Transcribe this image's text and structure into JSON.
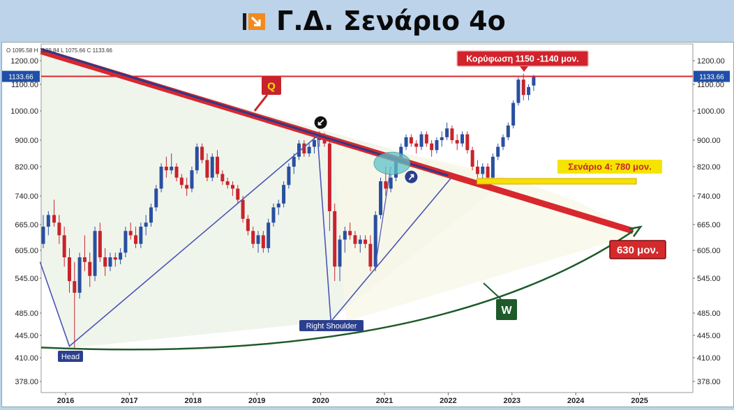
{
  "header": {
    "title": "Γ.Δ. Σενάριο 4ο"
  },
  "ohlc_legend": "O 1095.58  H 1139.84  L 1075.66  C 1133.66",
  "chart_data": {
    "type": "candlestick",
    "y_ticks": [
      378,
      410,
      445,
      485,
      545,
      605,
      665,
      740,
      820,
      900,
      1000,
      1100,
      1200
    ],
    "y_tick_labels": [
      "378.00",
      "410.00",
      "445.00",
      "485.00",
      "545.00",
      "605.00",
      "665.00",
      "740.00",
      "820.00",
      "900.00",
      "1000.00",
      "1100.00",
      "1200.00"
    ],
    "x_ticks": [
      2016,
      2017,
      2018,
      2019,
      2020,
      2021,
      2022,
      2023,
      2024,
      2025
    ],
    "x_tick_labels": [
      "2016",
      "2017",
      "2018",
      "2019",
      "2020",
      "2021",
      "2022",
      "2023",
      "2024",
      "2025"
    ],
    "current_price": 1133.66,
    "current_price_label": "1133.66",
    "scenario_level": 780,
    "candles": [
      {
        "t": 2015.65,
        "o": 620,
        "h": 690,
        "l": 610,
        "c": 660
      },
      {
        "t": 2015.73,
        "o": 660,
        "h": 700,
        "l": 640,
        "c": 690
      },
      {
        "t": 2015.82,
        "o": 690,
        "h": 730,
        "l": 660,
        "c": 670
      },
      {
        "t": 2015.9,
        "o": 670,
        "h": 690,
        "l": 620,
        "c": 640
      },
      {
        "t": 2015.98,
        "o": 640,
        "h": 660,
        "l": 570,
        "c": 590
      },
      {
        "t": 2016.06,
        "o": 590,
        "h": 610,
        "l": 520,
        "c": 540
      },
      {
        "t": 2016.14,
        "o": 540,
        "h": 580,
        "l": 425,
        "c": 520
      },
      {
        "t": 2016.22,
        "o": 520,
        "h": 600,
        "l": 510,
        "c": 590
      },
      {
        "t": 2016.3,
        "o": 590,
        "h": 640,
        "l": 560,
        "c": 580
      },
      {
        "t": 2016.38,
        "o": 580,
        "h": 600,
        "l": 530,
        "c": 550
      },
      {
        "t": 2016.46,
        "o": 550,
        "h": 660,
        "l": 540,
        "c": 650
      },
      {
        "t": 2016.54,
        "o": 650,
        "h": 670,
        "l": 580,
        "c": 590
      },
      {
        "t": 2016.62,
        "o": 590,
        "h": 610,
        "l": 550,
        "c": 570
      },
      {
        "t": 2016.7,
        "o": 570,
        "h": 600,
        "l": 560,
        "c": 590
      },
      {
        "t": 2016.78,
        "o": 590,
        "h": 600,
        "l": 570,
        "c": 585
      },
      {
        "t": 2016.86,
        "o": 585,
        "h": 610,
        "l": 575,
        "c": 600
      },
      {
        "t": 2016.94,
        "o": 600,
        "h": 660,
        "l": 590,
        "c": 650
      },
      {
        "t": 2017.02,
        "o": 650,
        "h": 670,
        "l": 630,
        "c": 640
      },
      {
        "t": 2017.1,
        "o": 640,
        "h": 660,
        "l": 610,
        "c": 620
      },
      {
        "t": 2017.18,
        "o": 620,
        "h": 670,
        "l": 610,
        "c": 660
      },
      {
        "t": 2017.26,
        "o": 660,
        "h": 690,
        "l": 640,
        "c": 670
      },
      {
        "t": 2017.34,
        "o": 670,
        "h": 720,
        "l": 660,
        "c": 710
      },
      {
        "t": 2017.42,
        "o": 710,
        "h": 770,
        "l": 700,
        "c": 760
      },
      {
        "t": 2017.5,
        "o": 760,
        "h": 830,
        "l": 750,
        "c": 820
      },
      {
        "t": 2017.58,
        "o": 820,
        "h": 850,
        "l": 790,
        "c": 810
      },
      {
        "t": 2017.66,
        "o": 810,
        "h": 860,
        "l": 800,
        "c": 820
      },
      {
        "t": 2017.74,
        "o": 820,
        "h": 830,
        "l": 780,
        "c": 790
      },
      {
        "t": 2017.82,
        "o": 790,
        "h": 800,
        "l": 760,
        "c": 770
      },
      {
        "t": 2017.9,
        "o": 770,
        "h": 790,
        "l": 740,
        "c": 760
      },
      {
        "t": 2017.98,
        "o": 760,
        "h": 820,
        "l": 750,
        "c": 810
      },
      {
        "t": 2018.06,
        "o": 810,
        "h": 890,
        "l": 800,
        "c": 880
      },
      {
        "t": 2018.14,
        "o": 880,
        "h": 890,
        "l": 830,
        "c": 840
      },
      {
        "t": 2018.22,
        "o": 840,
        "h": 860,
        "l": 780,
        "c": 790
      },
      {
        "t": 2018.3,
        "o": 790,
        "h": 860,
        "l": 780,
        "c": 850
      },
      {
        "t": 2018.38,
        "o": 850,
        "h": 870,
        "l": 790,
        "c": 800
      },
      {
        "t": 2018.46,
        "o": 800,
        "h": 810,
        "l": 770,
        "c": 780
      },
      {
        "t": 2018.54,
        "o": 780,
        "h": 790,
        "l": 760,
        "c": 770
      },
      {
        "t": 2018.62,
        "o": 770,
        "h": 780,
        "l": 740,
        "c": 760
      },
      {
        "t": 2018.7,
        "o": 760,
        "h": 770,
        "l": 720,
        "c": 730
      },
      {
        "t": 2018.78,
        "o": 730,
        "h": 740,
        "l": 670,
        "c": 680
      },
      {
        "t": 2018.86,
        "o": 680,
        "h": 690,
        "l": 640,
        "c": 650
      },
      {
        "t": 2018.94,
        "o": 650,
        "h": 660,
        "l": 610,
        "c": 620
      },
      {
        "t": 2019.02,
        "o": 620,
        "h": 650,
        "l": 600,
        "c": 640
      },
      {
        "t": 2019.1,
        "o": 640,
        "h": 650,
        "l": 600,
        "c": 610
      },
      {
        "t": 2019.18,
        "o": 610,
        "h": 680,
        "l": 600,
        "c": 670
      },
      {
        "t": 2019.26,
        "o": 670,
        "h": 720,
        "l": 660,
        "c": 710
      },
      {
        "t": 2019.34,
        "o": 710,
        "h": 730,
        "l": 690,
        "c": 720
      },
      {
        "t": 2019.42,
        "o": 720,
        "h": 780,
        "l": 710,
        "c": 770
      },
      {
        "t": 2019.5,
        "o": 770,
        "h": 830,
        "l": 760,
        "c": 820
      },
      {
        "t": 2019.58,
        "o": 820,
        "h": 860,
        "l": 800,
        "c": 850
      },
      {
        "t": 2019.66,
        "o": 850,
        "h": 900,
        "l": 840,
        "c": 890
      },
      {
        "t": 2019.74,
        "o": 890,
        "h": 900,
        "l": 850,
        "c": 860
      },
      {
        "t": 2019.82,
        "o": 860,
        "h": 890,
        "l": 850,
        "c": 880
      },
      {
        "t": 2019.9,
        "o": 880,
        "h": 910,
        "l": 860,
        "c": 900
      },
      {
        "t": 2019.98,
        "o": 900,
        "h": 930,
        "l": 880,
        "c": 910
      },
      {
        "t": 2020.06,
        "o": 910,
        "h": 925,
        "l": 880,
        "c": 890
      },
      {
        "t": 2020.14,
        "o": 890,
        "h": 900,
        "l": 650,
        "c": 700
      },
      {
        "t": 2020.22,
        "o": 700,
        "h": 720,
        "l": 540,
        "c": 570
      },
      {
        "t": 2020.3,
        "o": 570,
        "h": 640,
        "l": 540,
        "c": 630
      },
      {
        "t": 2020.38,
        "o": 630,
        "h": 660,
        "l": 600,
        "c": 650
      },
      {
        "t": 2020.46,
        "o": 650,
        "h": 670,
        "l": 630,
        "c": 640
      },
      {
        "t": 2020.54,
        "o": 640,
        "h": 650,
        "l": 610,
        "c": 620
      },
      {
        "t": 2020.62,
        "o": 620,
        "h": 640,
        "l": 600,
        "c": 630
      },
      {
        "t": 2020.7,
        "o": 630,
        "h": 640,
        "l": 610,
        "c": 620
      },
      {
        "t": 2020.78,
        "o": 620,
        "h": 640,
        "l": 560,
        "c": 570
      },
      {
        "t": 2020.86,
        "o": 570,
        "h": 700,
        "l": 560,
        "c": 690
      },
      {
        "t": 2020.94,
        "o": 690,
        "h": 790,
        "l": 680,
        "c": 780
      },
      {
        "t": 2021.02,
        "o": 780,
        "h": 820,
        "l": 740,
        "c": 760
      },
      {
        "t": 2021.1,
        "o": 760,
        "h": 800,
        "l": 750,
        "c": 790
      },
      {
        "t": 2021.18,
        "o": 790,
        "h": 850,
        "l": 780,
        "c": 840
      },
      {
        "t": 2021.26,
        "o": 840,
        "h": 890,
        "l": 830,
        "c": 880
      },
      {
        "t": 2021.34,
        "o": 880,
        "h": 920,
        "l": 870,
        "c": 910
      },
      {
        "t": 2021.42,
        "o": 910,
        "h": 920,
        "l": 880,
        "c": 890
      },
      {
        "t": 2021.5,
        "o": 890,
        "h": 900,
        "l": 860,
        "c": 880
      },
      {
        "t": 2021.58,
        "o": 880,
        "h": 930,
        "l": 870,
        "c": 920
      },
      {
        "t": 2021.66,
        "o": 920,
        "h": 930,
        "l": 880,
        "c": 890
      },
      {
        "t": 2021.74,
        "o": 890,
        "h": 900,
        "l": 850,
        "c": 870
      },
      {
        "t": 2021.82,
        "o": 870,
        "h": 910,
        "l": 860,
        "c": 900
      },
      {
        "t": 2021.9,
        "o": 900,
        "h": 930,
        "l": 880,
        "c": 910
      },
      {
        "t": 2021.98,
        "o": 910,
        "h": 960,
        "l": 900,
        "c": 940
      },
      {
        "t": 2022.06,
        "o": 940,
        "h": 950,
        "l": 890,
        "c": 900
      },
      {
        "t": 2022.14,
        "o": 900,
        "h": 920,
        "l": 870,
        "c": 890
      },
      {
        "t": 2022.22,
        "o": 890,
        "h": 930,
        "l": 880,
        "c": 920
      },
      {
        "t": 2022.3,
        "o": 920,
        "h": 930,
        "l": 860,
        "c": 870
      },
      {
        "t": 2022.38,
        "o": 870,
        "h": 880,
        "l": 810,
        "c": 820
      },
      {
        "t": 2022.46,
        "o": 820,
        "h": 840,
        "l": 790,
        "c": 800
      },
      {
        "t": 2022.54,
        "o": 800,
        "h": 830,
        "l": 780,
        "c": 820
      },
      {
        "t": 2022.62,
        "o": 820,
        "h": 830,
        "l": 780,
        "c": 790
      },
      {
        "t": 2022.7,
        "o": 790,
        "h": 860,
        "l": 780,
        "c": 850
      },
      {
        "t": 2022.78,
        "o": 850,
        "h": 890,
        "l": 840,
        "c": 880
      },
      {
        "t": 2022.86,
        "o": 880,
        "h": 920,
        "l": 870,
        "c": 910
      },
      {
        "t": 2022.94,
        "o": 910,
        "h": 960,
        "l": 900,
        "c": 950
      },
      {
        "t": 2023.02,
        "o": 950,
        "h": 1040,
        "l": 940,
        "c": 1030
      },
      {
        "t": 2023.1,
        "o": 1030,
        "h": 1130,
        "l": 1020,
        "c": 1120
      },
      {
        "t": 2023.18,
        "o": 1120,
        "h": 1145,
        "l": 1040,
        "c": 1060
      },
      {
        "t": 2023.26,
        "o": 1060,
        "h": 1100,
        "l": 1040,
        "c": 1090
      },
      {
        "t": 2023.34,
        "o": 1095.58,
        "h": 1139.84,
        "l": 1075.66,
        "c": 1133.66
      }
    ]
  },
  "annotations": {
    "q_label": "Q",
    "w_label": "W",
    "peak_label": "Κορύφωση 1150 -1140 μον.",
    "scenario_label": "Σενάριο 4: 780 μον.",
    "target_label": "630 μον.",
    "head_label": "Head",
    "right_shoulder_label": "Right Shoulder"
  },
  "colors": {
    "up": "#2a4fa0",
    "down": "#c8232c",
    "trendline": "#d9272e",
    "trend_edge": "#2b3a8c",
    "curve": "#1e5a2a",
    "scenario_box": "#f6e000",
    "shade": "#eef4ea"
  }
}
